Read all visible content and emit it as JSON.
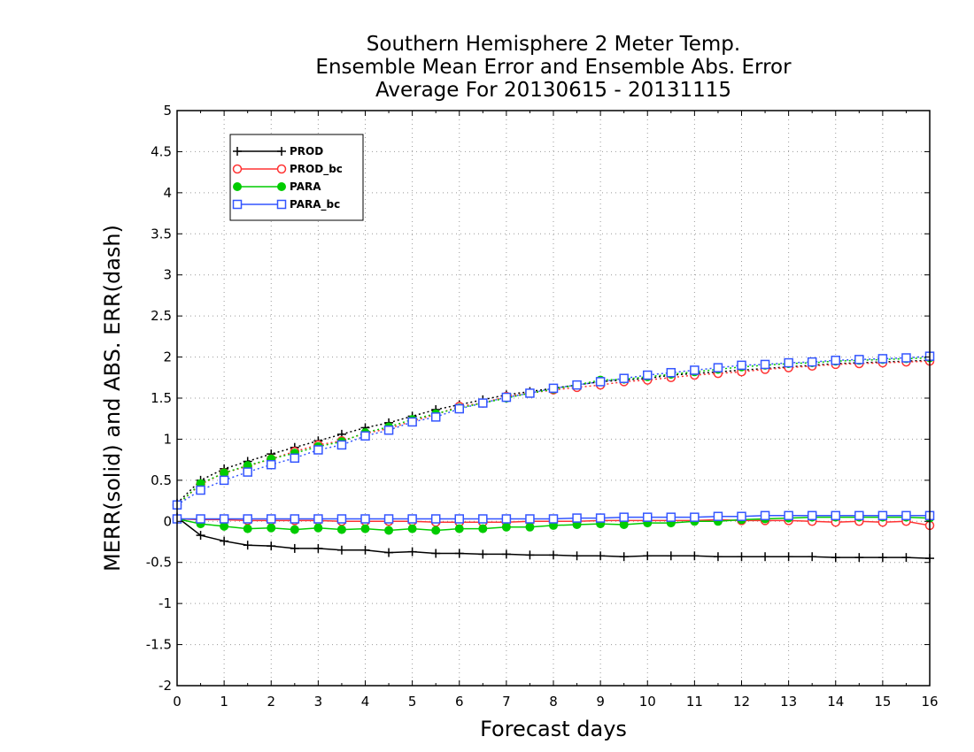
{
  "chart_data": {
    "type": "line",
    "title": [
      "Southern Hemisphere 2 Meter Temp.",
      "Ensemble Mean Error and Ensemble Abs. Error",
      "Average For 20130615 - 20131115"
    ],
    "xlabel": "Forecast days",
    "ylabel": "MERR(solid) and ABS. ERR(dash)",
    "xlim": [
      0,
      16
    ],
    "ylim": [
      -2,
      5
    ],
    "xticks": [
      "0",
      "1",
      "2",
      "3",
      "4",
      "5",
      "6",
      "7",
      "8",
      "9",
      "10",
      "11",
      "12",
      "13",
      "14",
      "15",
      "16"
    ],
    "yticks": [
      "-2",
      "-1.5",
      "-1",
      "-0.5",
      "0",
      "0.5",
      "1",
      "1.5",
      "2",
      "2.5",
      "3",
      "3.5",
      "4",
      "4.5",
      "5"
    ],
    "grid": true,
    "legend_position": "top-left",
    "x": [
      0,
      0.5,
      1,
      1.5,
      2,
      2.5,
      3,
      3.5,
      4,
      4.5,
      5,
      5.5,
      6,
      6.5,
      7,
      7.5,
      8,
      8.5,
      9,
      9.5,
      10,
      10.5,
      11,
      11.5,
      12,
      12.5,
      13,
      13.5,
      14,
      14.5,
      15,
      15.5,
      16
    ],
    "series": [
      {
        "name": "PROD",
        "color": "#000000",
        "marker": "plus",
        "merr": [
          0.05,
          -0.17,
          -0.24,
          -0.29,
          -0.3,
          -0.33,
          -0.33,
          -0.35,
          -0.35,
          -0.38,
          -0.37,
          -0.39,
          -0.39,
          -0.4,
          -0.4,
          -0.41,
          -0.41,
          -0.42,
          -0.42,
          -0.43,
          -0.42,
          -0.42,
          -0.42,
          -0.43,
          -0.43,
          -0.43,
          -0.43,
          -0.43,
          -0.44,
          -0.44,
          -0.44,
          -0.44,
          -0.45
        ],
        "abserr": [
          0.22,
          0.5,
          0.64,
          0.73,
          0.82,
          0.9,
          0.98,
          1.06,
          1.14,
          1.2,
          1.28,
          1.36,
          1.42,
          1.48,
          1.54,
          1.58,
          1.62,
          1.66,
          1.7,
          1.72,
          1.74,
          1.78,
          1.8,
          1.82,
          1.84,
          1.86,
          1.88,
          1.9,
          1.92,
          1.93,
          1.94,
          1.95,
          1.96
        ]
      },
      {
        "name": "PROD_bc",
        "color": "#ff3333",
        "marker": "circle-open",
        "merr": [
          0.03,
          0.02,
          0.02,
          0.01,
          0.01,
          0.01,
          0.01,
          0.0,
          0.0,
          0.0,
          0.0,
          -0.01,
          -0.01,
          -0.01,
          -0.01,
          0.0,
          0.0,
          0.0,
          0.01,
          0.01,
          0.01,
          0.01,
          0.01,
          0.02,
          0.01,
          0.01,
          0.01,
          0.0,
          -0.01,
          0.0,
          -0.01,
          0.0,
          -0.05
        ],
        "abserr": [
          0.2,
          0.45,
          0.59,
          0.67,
          0.76,
          0.85,
          0.93,
          0.98,
          1.07,
          1.13,
          1.22,
          1.3,
          1.4,
          1.44,
          1.52,
          1.56,
          1.6,
          1.63,
          1.66,
          1.7,
          1.72,
          1.75,
          1.78,
          1.8,
          1.82,
          1.85,
          1.87,
          1.89,
          1.91,
          1.92,
          1.93,
          1.94,
          1.95
        ]
      },
      {
        "name": "PARA",
        "color": "#00cc00",
        "marker": "circle-filled",
        "merr": [
          0.03,
          -0.03,
          -0.06,
          -0.09,
          -0.08,
          -0.1,
          -0.08,
          -0.1,
          -0.09,
          -0.11,
          -0.09,
          -0.11,
          -0.09,
          -0.09,
          -0.07,
          -0.07,
          -0.05,
          -0.04,
          -0.03,
          -0.04,
          -0.02,
          -0.02,
          0.0,
          0.0,
          0.02,
          0.03,
          0.04,
          0.05,
          0.05,
          0.05,
          0.05,
          0.05,
          0.04
        ],
        "abserr": [
          0.2,
          0.46,
          0.59,
          0.68,
          0.76,
          0.83,
          0.91,
          0.97,
          1.08,
          1.15,
          1.24,
          1.31,
          1.38,
          1.44,
          1.5,
          1.56,
          1.61,
          1.66,
          1.72,
          1.73,
          1.76,
          1.79,
          1.82,
          1.85,
          1.88,
          1.9,
          1.92,
          1.93,
          1.95,
          1.96,
          1.97,
          1.98,
          1.99
        ]
      },
      {
        "name": "PARA_bc",
        "color": "#3355ff",
        "marker": "square-open",
        "merr": [
          0.03,
          0.03,
          0.03,
          0.03,
          0.03,
          0.03,
          0.03,
          0.03,
          0.03,
          0.03,
          0.03,
          0.03,
          0.03,
          0.03,
          0.03,
          0.03,
          0.03,
          0.04,
          0.04,
          0.05,
          0.05,
          0.05,
          0.05,
          0.06,
          0.06,
          0.07,
          0.07,
          0.07,
          0.07,
          0.07,
          0.07,
          0.07,
          0.07
        ],
        "abserr": [
          0.2,
          0.38,
          0.5,
          0.6,
          0.69,
          0.77,
          0.87,
          0.93,
          1.04,
          1.11,
          1.21,
          1.27,
          1.37,
          1.44,
          1.51,
          1.56,
          1.62,
          1.66,
          1.7,
          1.74,
          1.78,
          1.81,
          1.84,
          1.87,
          1.9,
          1.91,
          1.93,
          1.94,
          1.96,
          1.97,
          1.98,
          1.99,
          2.01
        ]
      }
    ]
  }
}
